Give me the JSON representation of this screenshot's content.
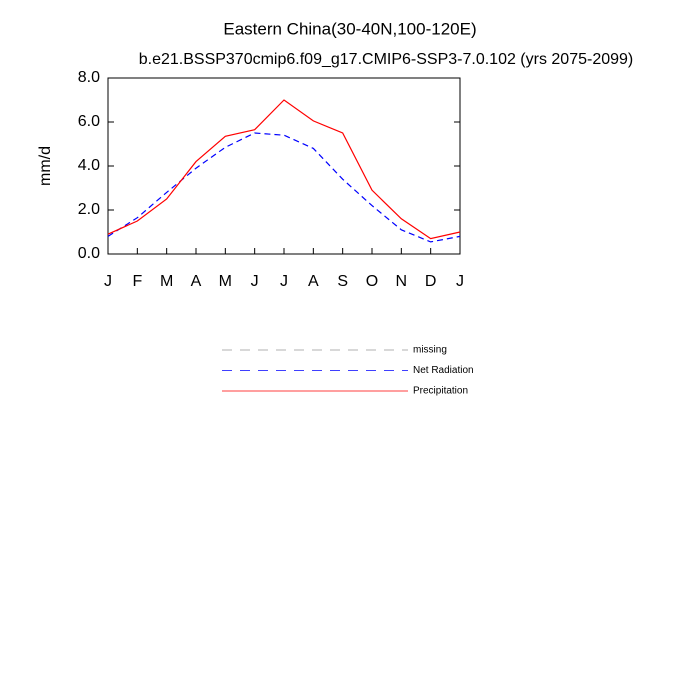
{
  "chart_data": {
    "type": "line",
    "title": "Eastern China(30-40N,100-120E)",
    "subtitle": "b.e21.BSSP370cmip6.f09_g17.CMIP6-SSP3-7.0.102 (yrs 2075-2099)",
    "y_label": "mm/d",
    "categories": [
      "J",
      "F",
      "M",
      "A",
      "M",
      "J",
      "J",
      "A",
      "S",
      "O",
      "N",
      "D",
      "J"
    ],
    "series": [
      {
        "name": "missing",
        "color": "#999999",
        "dash": true,
        "values": [
          null,
          null,
          null,
          null,
          null,
          null,
          null,
          null,
          null,
          null,
          null,
          null,
          null
        ]
      },
      {
        "name": "Net Radiation",
        "color": "#0000ff",
        "dash": true,
        "values": [
          0.8,
          1.65,
          2.8,
          3.9,
          4.85,
          5.5,
          5.4,
          4.8,
          3.4,
          2.2,
          1.1,
          0.55,
          0.8
        ]
      },
      {
        "name": "Precipitation",
        "color": "#ff0000",
        "dash": false,
        "values": [
          0.9,
          1.5,
          2.5,
          4.2,
          5.35,
          5.65,
          7.0,
          6.05,
          5.5,
          2.9,
          1.6,
          0.7,
          1.0
        ]
      }
    ],
    "ylim": [
      0,
      8
    ],
    "yticks": [
      {
        "value": 0,
        "label": "0.0"
      },
      {
        "value": 2,
        "label": "2.0"
      },
      {
        "value": 4,
        "label": "4.0"
      },
      {
        "value": 6,
        "label": "6.0"
      },
      {
        "value": 8,
        "label": "8.0"
      }
    ]
  }
}
